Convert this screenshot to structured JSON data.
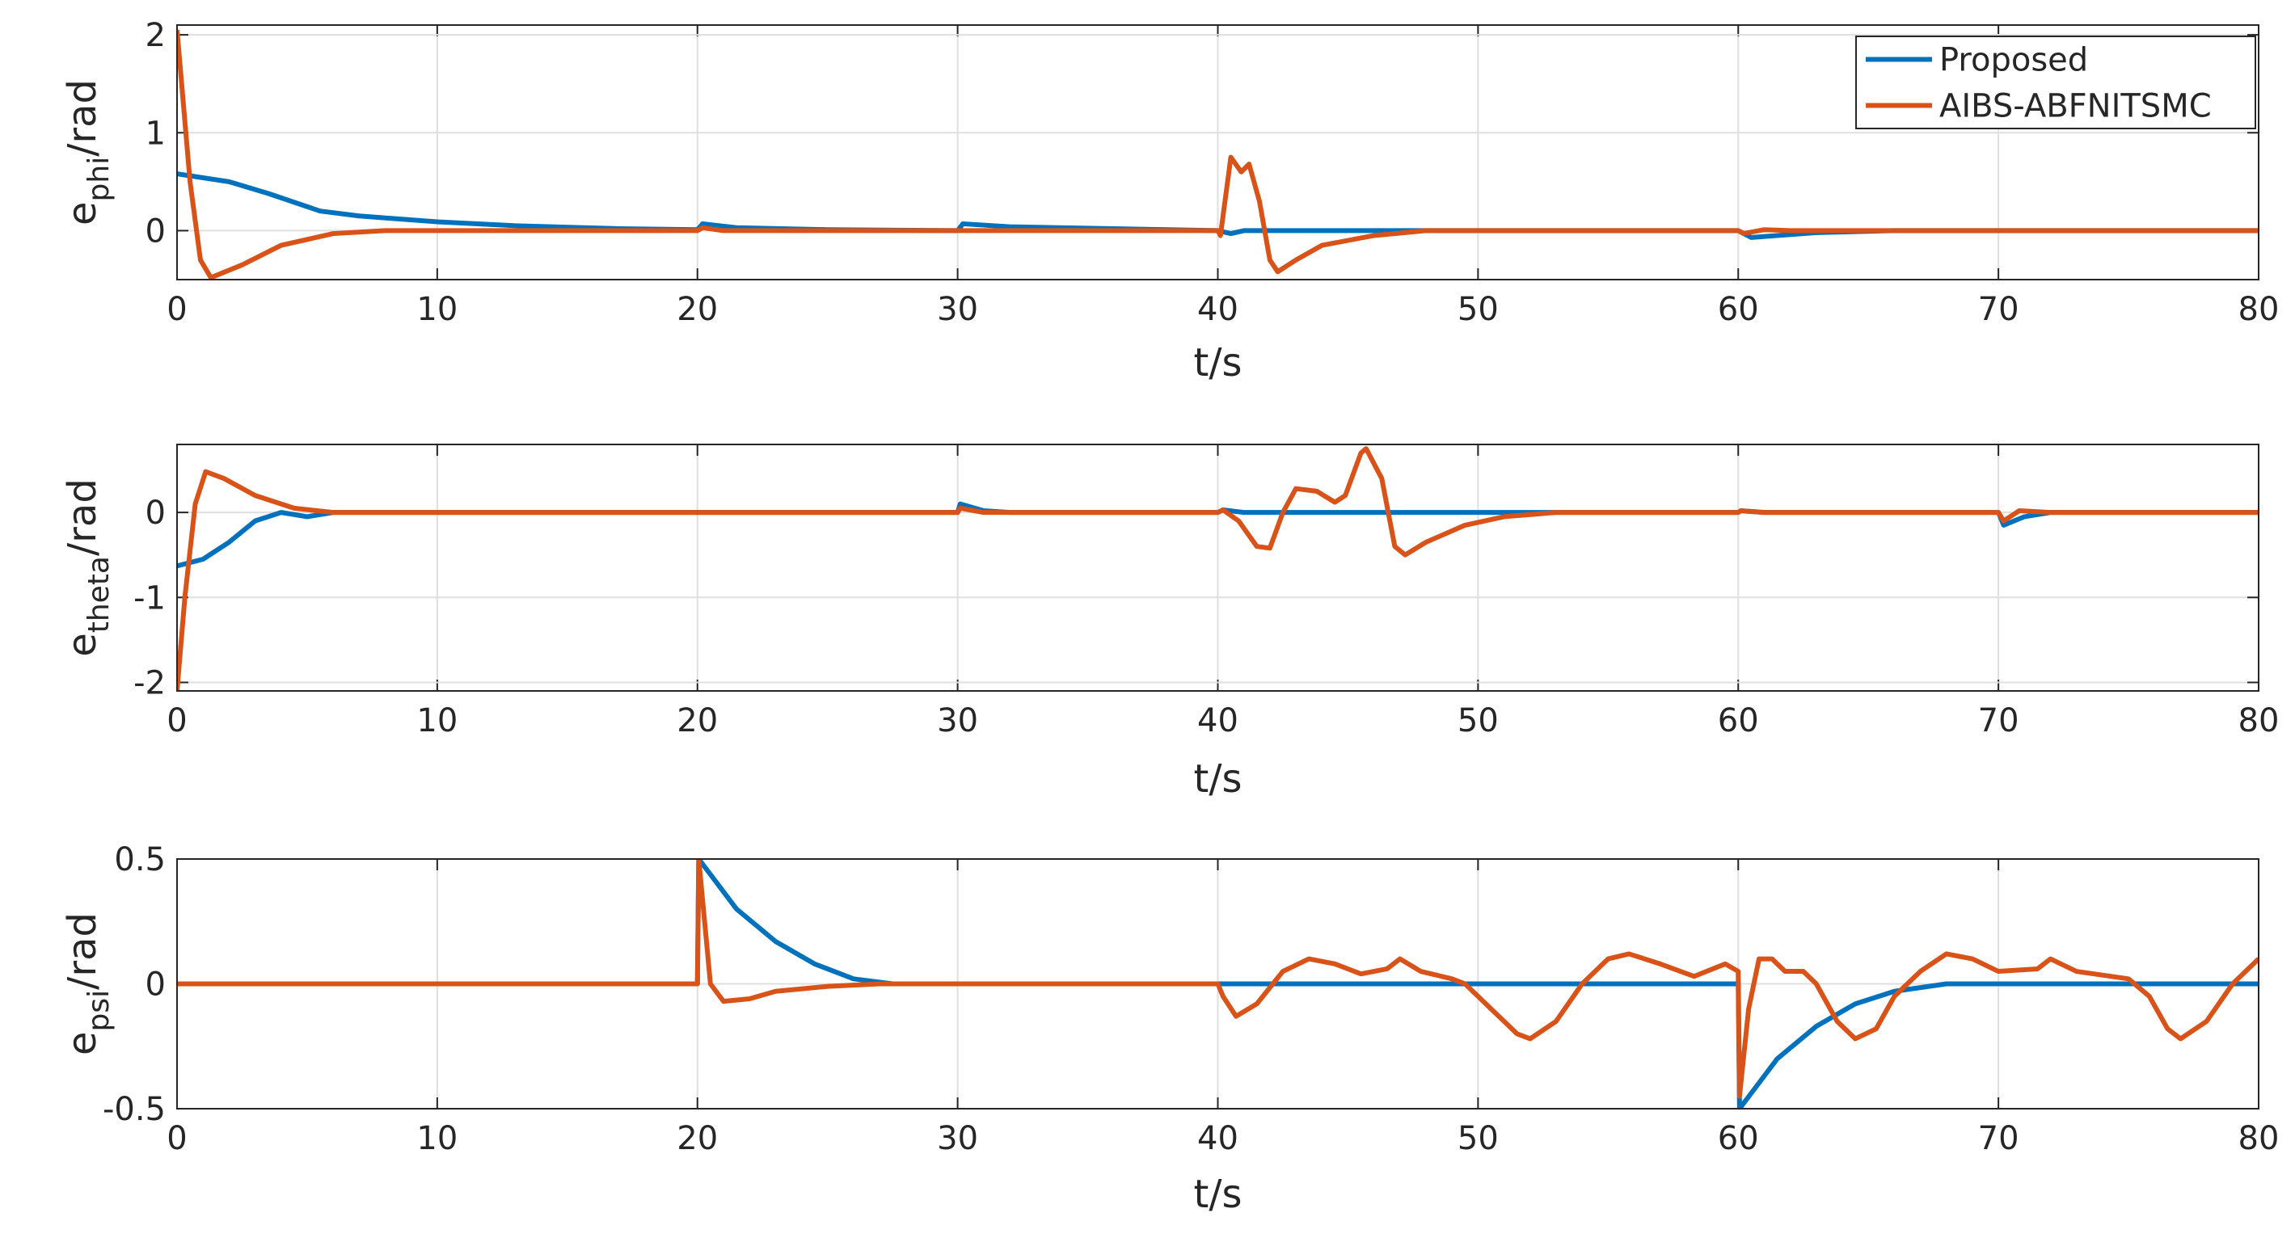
{
  "chart_data": [
    {
      "type": "line",
      "xlabel": "t/s",
      "ylabel": "e",
      "ylabel_sub": "phi",
      "ylabel_unit": "/rad",
      "xlim": [
        0,
        80
      ],
      "xticks": [
        0,
        10,
        20,
        30,
        40,
        50,
        60,
        70,
        80
      ],
      "ylim": [
        -0.5,
        2.1
      ],
      "yticks": [
        0,
        1,
        2
      ],
      "grid": true,
      "legend": "upper right",
      "series": [
        {
          "name": "Proposed",
          "color": "#0072BD",
          "x": [
            0,
            2,
            3.5,
            5.5,
            7,
            10,
            13,
            17,
            20,
            20.2,
            21.5,
            25,
            30,
            30.2,
            32,
            36,
            40,
            40.5,
            41,
            60,
            60.5,
            63,
            66,
            80
          ],
          "values": [
            0.58,
            0.5,
            0.38,
            0.2,
            0.15,
            0.09,
            0.05,
            0.02,
            0.01,
            0.07,
            0.03,
            0.01,
            0,
            0.07,
            0.04,
            0.02,
            0,
            -0.03,
            0,
            0,
            -0.07,
            -0.02,
            0,
            0
          ]
        },
        {
          "name": "AIBS-ABFNITSMC",
          "color": "#D95319",
          "x": [
            0,
            0.5,
            0.9,
            1.3,
            2.5,
            4,
            6,
            8,
            20,
            20.2,
            21,
            30,
            40,
            40.1,
            40.5,
            40.9,
            41.2,
            41.6,
            42,
            42.3,
            43,
            44,
            46,
            48,
            60,
            60.2,
            61,
            62,
            80
          ],
          "values": [
            2.05,
            0.5,
            -0.3,
            -0.48,
            -0.35,
            -0.15,
            -0.03,
            0,
            0,
            0.03,
            0,
            0,
            0,
            -0.05,
            0.75,
            0.6,
            0.68,
            0.3,
            -0.3,
            -0.42,
            -0.3,
            -0.15,
            -0.05,
            0,
            0,
            -0.03,
            0.01,
            0,
            0
          ]
        }
      ]
    },
    {
      "type": "line",
      "xlabel": "t/s",
      "ylabel": "e",
      "ylabel_sub": "theta",
      "ylabel_unit": "/rad",
      "xlim": [
        0,
        80
      ],
      "xticks": [
        0,
        10,
        20,
        30,
        40,
        50,
        60,
        70,
        80
      ],
      "ylim": [
        -2.1,
        0.8
      ],
      "yticks": [
        -2,
        -1,
        0
      ],
      "grid": true,
      "series": [
        {
          "color": "#0072BD",
          "x": [
            0,
            1,
            2,
            3,
            4,
            5,
            6,
            30,
            30.1,
            31,
            32,
            40,
            40.2,
            41,
            60,
            60.1,
            61,
            70,
            70.2,
            71,
            72,
            80
          ],
          "values": [
            -0.63,
            -0.55,
            -0.35,
            -0.1,
            0,
            -0.05,
            0,
            0,
            0.1,
            0.02,
            0,
            0,
            0.03,
            0,
            0,
            0.02,
            0,
            0,
            -0.15,
            -0.05,
            0,
            0
          ]
        },
        {
          "color": "#D95319",
          "x": [
            0,
            0.3,
            0.7,
            1.1,
            1.8,
            3,
            4.5,
            6,
            30,
            30.1,
            31,
            40,
            40.2,
            40.8,
            41.5,
            42,
            42.5,
            43,
            43.8,
            44.5,
            44.9,
            45.5,
            45.7,
            46.3,
            46.8,
            47.2,
            48,
            49.5,
            51,
            53,
            60,
            60.1,
            61,
            70,
            70.2,
            70.8,
            72,
            80
          ],
          "values": [
            -2.1,
            -1,
            0.1,
            0.48,
            0.4,
            0.2,
            0.05,
            0,
            0,
            0.05,
            0,
            0,
            0.03,
            -0.1,
            -0.4,
            -0.42,
            0,
            0.28,
            0.25,
            0.12,
            0.2,
            0.7,
            0.75,
            0.4,
            -0.4,
            -0.5,
            -0.35,
            -0.15,
            -0.05,
            0,
            0,
            0.02,
            0,
            0,
            -0.1,
            0.02,
            0,
            0
          ]
        }
      ]
    },
    {
      "type": "line",
      "xlabel": "t/s",
      "ylabel": "e",
      "ylabel_sub": "psi",
      "ylabel_unit": "/rad",
      "xlim": [
        0,
        80
      ],
      "xticks": [
        0,
        10,
        20,
        30,
        40,
        50,
        60,
        70,
        80
      ],
      "ylim": [
        -0.5,
        0.5
      ],
      "yticks": [
        -0.5,
        0,
        0.5
      ],
      "grid": true,
      "series": [
        {
          "color": "#0072BD",
          "x": [
            0,
            20,
            20.05,
            21.5,
            23,
            24.5,
            26,
            27.5,
            60,
            60.05,
            61.5,
            63,
            64.5,
            66,
            68,
            80
          ],
          "values": [
            0,
            0,
            0.5,
            0.3,
            0.17,
            0.08,
            0.02,
            0,
            0,
            -0.5,
            -0.3,
            -0.17,
            -0.08,
            -0.03,
            0,
            0
          ]
        },
        {
          "color": "#D95319",
          "x": [
            0,
            20,
            20.05,
            20.5,
            21,
            22,
            23,
            25,
            27,
            40,
            40.2,
            40.7,
            41.5,
            42.5,
            43.5,
            44.5,
            45.5,
            46.5,
            47,
            47.8,
            49,
            49.5,
            50.5,
            51.5,
            52,
            53,
            54,
            55,
            55.8,
            57,
            58.3,
            59.5,
            60,
            60.05,
            60.4,
            60.8,
            61.3,
            61.8,
            62.5,
            63,
            63.8,
            64.5,
            65.3,
            66,
            67,
            68,
            69,
            70,
            71.5,
            72,
            73,
            75,
            75.8,
            76.5,
            77,
            78,
            79,
            80
          ],
          "values": [
            0,
            0,
            0.5,
            0,
            -0.07,
            -0.06,
            -0.03,
            -0.01,
            0,
            0,
            -0.05,
            -0.13,
            -0.08,
            0.05,
            0.1,
            0.08,
            0.04,
            0.06,
            0.1,
            0.05,
            0.02,
            0,
            -0.1,
            -0.2,
            -0.22,
            -0.15,
            0,
            0.1,
            0.12,
            0.08,
            0.03,
            0.08,
            0.05,
            -0.45,
            -0.1,
            0.1,
            0.1,
            0.05,
            0.05,
            0,
            -0.15,
            -0.22,
            -0.18,
            -0.05,
            0.05,
            0.12,
            0.1,
            0.05,
            0.06,
            0.1,
            0.05,
            0.02,
            -0.05,
            -0.18,
            -0.22,
            -0.15,
            0,
            0.1
          ]
        }
      ]
    }
  ]
}
